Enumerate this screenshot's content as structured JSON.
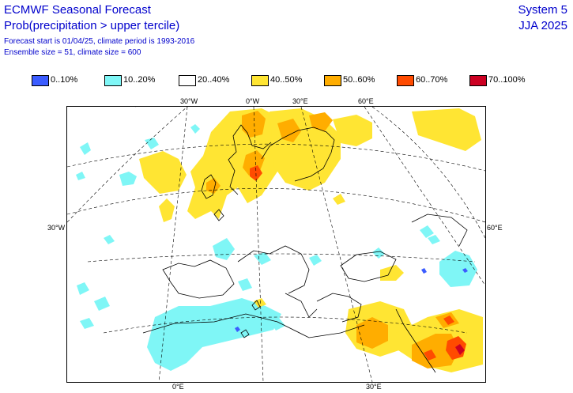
{
  "header": {
    "title": "ECMWF Seasonal Forecast",
    "subtitle": "Prob(precipitation > upper tercile)",
    "info1": "Forecast start is 01/04/25, climate period is 1993-2016",
    "info2": "Ensemble size = 51, climate size = 600",
    "system": "System 5",
    "season": "JJA 2025"
  },
  "legend": [
    {
      "label": "0..10%",
      "color": "#3b5cff"
    },
    {
      "label": "10..20%",
      "color": "#7ff6f6"
    },
    {
      "label": "20..40%",
      "color": "#ffffff"
    },
    {
      "label": "40..50%",
      "color": "#ffe533"
    },
    {
      "label": "50..60%",
      "color": "#ffad00"
    },
    {
      "label": "60..70%",
      "color": "#ff4b00"
    },
    {
      "label": "70..100%",
      "color": "#cc0022"
    }
  ],
  "labels": {
    "top": [
      "30°W",
      "0°W",
      "30°E",
      "60°E"
    ],
    "left": "30°W",
    "right": "60°E",
    "bottom": [
      "0°E",
      "30°E"
    ]
  }
}
